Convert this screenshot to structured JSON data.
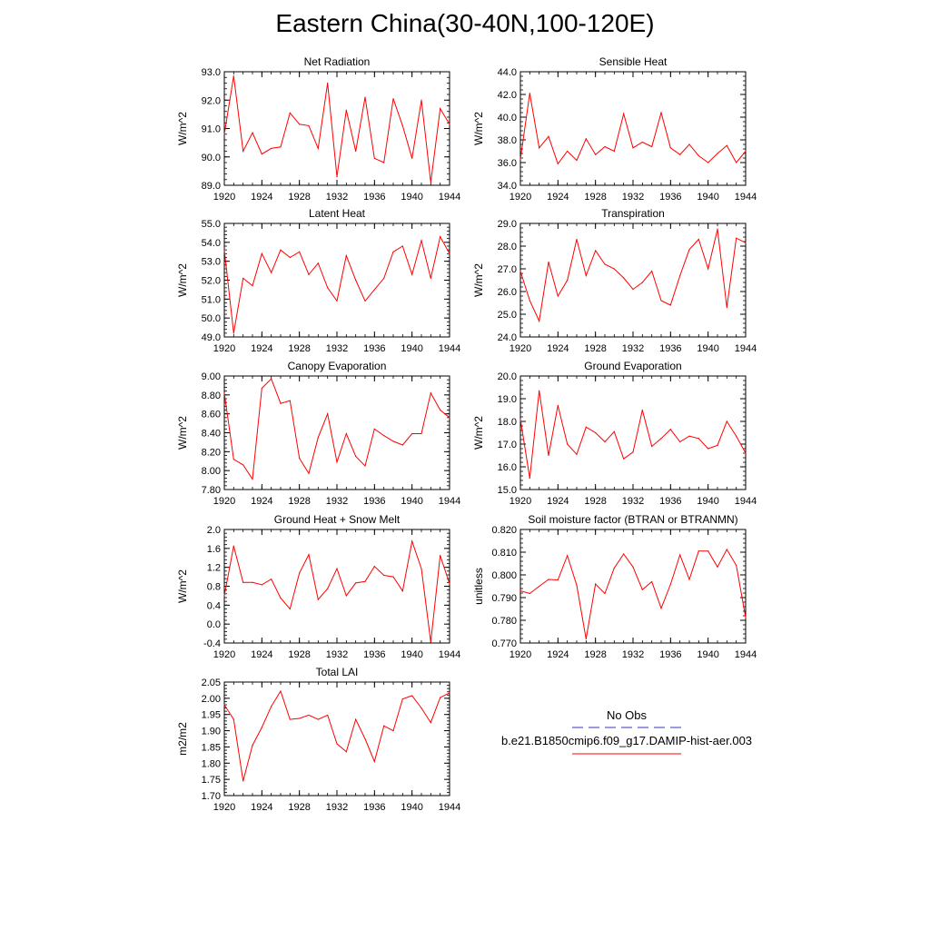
{
  "figure": {
    "title": "Eastern China(30-40N,100-120E)",
    "legend": {
      "obs_label": "No Obs",
      "model_label": "b.e21.B1850cmip6.f09_g17.DAMIP-hist-aer.003",
      "obs_color": "#3333cc",
      "model_color": "#ff0000"
    }
  },
  "chart_data": [
    {
      "type": "line",
      "title": "Net Radiation",
      "xlabel": "",
      "ylabel": "W/m^2",
      "xlim": [
        1920,
        1944
      ],
      "ylim": [
        89.0,
        93.0
      ],
      "xticks": [
        "1920",
        "1924",
        "1928",
        "1932",
        "1936",
        "1940",
        "1944"
      ],
      "yticks": [
        "89.0",
        "90.0",
        "91.0",
        "92.0",
        "93.0"
      ],
      "color": "#ff0000",
      "x": [
        1920,
        1921,
        1922,
        1923,
        1924,
        1925,
        1926,
        1927,
        1928,
        1929,
        1930,
        1931,
        1932,
        1933,
        1934,
        1935,
        1936,
        1937,
        1938,
        1939,
        1940,
        1941,
        1942,
        1943,
        1944
      ],
      "values": [
        90.8,
        92.85,
        90.2,
        90.85,
        90.1,
        90.3,
        90.35,
        91.55,
        91.15,
        91.1,
        90.3,
        92.6,
        89.3,
        91.65,
        90.2,
        92.1,
        89.95,
        89.8,
        92.05,
        91.1,
        89.95,
        92.0,
        89.1,
        91.7,
        91.15
      ]
    },
    {
      "type": "line",
      "title": "Sensible Heat",
      "xlabel": "",
      "ylabel": "W/m^2",
      "xlim": [
        1920,
        1944
      ],
      "ylim": [
        34.0,
        44.0
      ],
      "xticks": [
        "1920",
        "1924",
        "1928",
        "1932",
        "1936",
        "1940",
        "1944"
      ],
      "yticks": [
        "34.0",
        "36.0",
        "38.0",
        "40.0",
        "42.0",
        "44.0"
      ],
      "color": "#ff0000",
      "x": [
        1920,
        1921,
        1922,
        1923,
        1924,
        1925,
        1926,
        1927,
        1928,
        1929,
        1930,
        1931,
        1932,
        1933,
        1934,
        1935,
        1936,
        1937,
        1938,
        1939,
        1940,
        1941,
        1942,
        1943,
        1944
      ],
      "values": [
        36.3,
        42.1,
        37.3,
        38.3,
        35.9,
        37.0,
        36.2,
        38.1,
        36.7,
        37.4,
        37.0,
        40.3,
        37.3,
        37.8,
        37.4,
        40.4,
        37.3,
        36.7,
        37.6,
        36.6,
        36.0,
        36.8,
        37.5,
        36.0,
        37.0
      ]
    },
    {
      "type": "line",
      "title": "Latent Heat",
      "xlabel": "",
      "ylabel": "W/m^2",
      "xlim": [
        1920,
        1944
      ],
      "ylim": [
        49.0,
        55.0
      ],
      "xticks": [
        "1920",
        "1924",
        "1928",
        "1932",
        "1936",
        "1940",
        "1944"
      ],
      "yticks": [
        "49.0",
        "50.0",
        "51.0",
        "52.0",
        "53.0",
        "54.0",
        "55.0"
      ],
      "color": "#ff0000",
      "x": [
        1920,
        1921,
        1922,
        1923,
        1924,
        1925,
        1926,
        1927,
        1928,
        1929,
        1930,
        1931,
        1932,
        1933,
        1934,
        1935,
        1936,
        1937,
        1938,
        1939,
        1940,
        1941,
        1942,
        1943,
        1944
      ],
      "values": [
        53.6,
        49.2,
        52.1,
        51.7,
        53.4,
        52.4,
        53.6,
        53.2,
        53.5,
        52.3,
        52.9,
        51.6,
        50.9,
        53.3,
        52.0,
        50.9,
        51.5,
        52.1,
        53.5,
        53.8,
        52.3,
        54.1,
        52.1,
        54.3,
        53.4
      ]
    },
    {
      "type": "line",
      "title": "Transpiration",
      "xlabel": "",
      "ylabel": "W/m^2",
      "xlim": [
        1920,
        1944
      ],
      "ylim": [
        24.0,
        29.0
      ],
      "xticks": [
        "1920",
        "1924",
        "1928",
        "1932",
        "1936",
        "1940",
        "1944"
      ],
      "yticks": [
        "24.0",
        "25.0",
        "26.0",
        "27.0",
        "28.0",
        "29.0"
      ],
      "color": "#ff0000",
      "x": [
        1920,
        1921,
        1922,
        1923,
        1924,
        1925,
        1926,
        1927,
        1928,
        1929,
        1930,
        1931,
        1932,
        1933,
        1934,
        1935,
        1936,
        1937,
        1938,
        1939,
        1940,
        1941,
        1942,
        1943,
        1944
      ],
      "values": [
        26.9,
        25.6,
        24.7,
        27.3,
        25.8,
        26.5,
        28.3,
        26.7,
        27.8,
        27.2,
        27.0,
        26.6,
        26.1,
        26.4,
        26.9,
        25.6,
        25.4,
        26.7,
        27.85,
        28.3,
        27.0,
        28.75,
        25.3,
        28.35,
        28.15
      ]
    },
    {
      "type": "line",
      "title": "Canopy Evaporation",
      "xlabel": "",
      "ylabel": "W/m^2",
      "xlim": [
        1920,
        1944
      ],
      "ylim": [
        7.8,
        9.0
      ],
      "xticks": [
        "1920",
        "1924",
        "1928",
        "1932",
        "1936",
        "1940",
        "1944"
      ],
      "yticks": [
        "7.80",
        "8.00",
        "8.20",
        "8.40",
        "8.60",
        "8.80",
        "9.00"
      ],
      "color": "#ff0000",
      "x": [
        1920,
        1921,
        1922,
        1923,
        1924,
        1925,
        1926,
        1927,
        1928,
        1929,
        1930,
        1931,
        1932,
        1933,
        1934,
        1935,
        1936,
        1937,
        1938,
        1939,
        1940,
        1941,
        1942,
        1943,
        1944
      ],
      "values": [
        8.82,
        8.12,
        8.06,
        7.91,
        8.87,
        8.97,
        8.71,
        8.74,
        8.13,
        7.97,
        8.35,
        8.6,
        8.09,
        8.39,
        8.15,
        8.05,
        8.44,
        8.37,
        8.31,
        8.27,
        8.39,
        8.39,
        8.82,
        8.64,
        8.56
      ]
    },
    {
      "type": "line",
      "title": "Ground Evaporation",
      "xlabel": "",
      "ylabel": "W/m^2",
      "xlim": [
        1920,
        1944
      ],
      "ylim": [
        15.0,
        20.0
      ],
      "xticks": [
        "1920",
        "1924",
        "1928",
        "1932",
        "1936",
        "1940",
        "1944"
      ],
      "yticks": [
        "15.0",
        "16.0",
        "17.0",
        "18.0",
        "19.0",
        "20.0"
      ],
      "color": "#ff0000",
      "x": [
        1920,
        1921,
        1922,
        1923,
        1924,
        1925,
        1926,
        1927,
        1928,
        1929,
        1930,
        1931,
        1932,
        1933,
        1934,
        1935,
        1936,
        1937,
        1938,
        1939,
        1940,
        1941,
        1942,
        1943,
        1944
      ],
      "values": [
        18.1,
        15.5,
        19.35,
        16.5,
        18.7,
        17.0,
        16.55,
        17.75,
        17.5,
        17.1,
        17.55,
        16.35,
        16.65,
        18.5,
        16.9,
        17.25,
        17.65,
        17.1,
        17.35,
        17.25,
        16.8,
        16.95,
        18.0,
        17.35,
        16.6
      ]
    },
    {
      "type": "line",
      "title": "Ground Heat + Snow Melt",
      "xlabel": "",
      "ylabel": "W/m^2",
      "xlim": [
        1920,
        1944
      ],
      "ylim": [
        -0.4,
        2.0
      ],
      "xticks": [
        "1920",
        "1924",
        "1928",
        "1932",
        "1936",
        "1940",
        "1944"
      ],
      "yticks": [
        "-0.4",
        "0.0",
        "0.4",
        "0.8",
        "1.2",
        "1.6",
        "2.0"
      ],
      "color": "#ff0000",
      "x": [
        1920,
        1921,
        1922,
        1923,
        1924,
        1925,
        1926,
        1927,
        1928,
        1929,
        1930,
        1931,
        1932,
        1933,
        1934,
        1935,
        1936,
        1937,
        1938,
        1939,
        1940,
        1941,
        1942,
        1943,
        1944
      ],
      "values": [
        0.6,
        1.65,
        0.88,
        0.88,
        0.83,
        0.95,
        0.55,
        0.32,
        1.08,
        1.47,
        0.52,
        0.75,
        1.17,
        0.6,
        0.87,
        0.9,
        1.22,
        1.03,
        1.0,
        0.7,
        1.75,
        1.17,
        -0.38,
        1.45,
        0.85
      ]
    },
    {
      "type": "line",
      "title": "Soil moisture factor (BTRAN or BTRANMN)",
      "xlabel": "",
      "ylabel": "unitless",
      "xlim": [
        1920,
        1944
      ],
      "ylim": [
        0.77,
        0.82
      ],
      "xticks": [
        "1920",
        "1924",
        "1928",
        "1932",
        "1936",
        "1940",
        "1944"
      ],
      "yticks": [
        "0.770",
        "0.780",
        "0.790",
        "0.800",
        "0.810",
        "0.820"
      ],
      "color": "#ff0000",
      "x": [
        1920,
        1921,
        1922,
        1923,
        1924,
        1925,
        1926,
        1927,
        1928,
        1929,
        1930,
        1931,
        1932,
        1933,
        1934,
        1935,
        1936,
        1937,
        1938,
        1939,
        1940,
        1941,
        1942,
        1943,
        1944
      ],
      "values": [
        0.793,
        0.7918,
        0.795,
        0.798,
        0.7978,
        0.8085,
        0.7955,
        0.7718,
        0.796,
        0.7918,
        0.803,
        0.8092,
        0.8035,
        0.7935,
        0.797,
        0.7853,
        0.7958,
        0.8088,
        0.798,
        0.8105,
        0.8105,
        0.8035,
        0.8112,
        0.8042,
        0.7812
      ]
    },
    {
      "type": "line",
      "title": "Total LAI",
      "xlabel": "",
      "ylabel": "m2/m2",
      "xlim": [
        1920,
        1944
      ],
      "ylim": [
        1.7,
        2.05
      ],
      "xticks": [
        "1920",
        "1924",
        "1928",
        "1932",
        "1936",
        "1940",
        "1944"
      ],
      "yticks": [
        "1.70",
        "1.75",
        "1.80",
        "1.85",
        "1.90",
        "1.95",
        "2.00",
        "2.05"
      ],
      "color": "#ff0000",
      "x": [
        1920,
        1921,
        1922,
        1923,
        1924,
        1925,
        1926,
        1927,
        1928,
        1929,
        1930,
        1931,
        1932,
        1933,
        1934,
        1935,
        1936,
        1937,
        1938,
        1939,
        1940,
        1941,
        1942,
        1943,
        1944
      ],
      "values": [
        1.98,
        1.935,
        1.745,
        1.855,
        1.91,
        1.975,
        2.022,
        1.935,
        1.938,
        1.948,
        1.935,
        1.948,
        1.86,
        1.835,
        1.935,
        1.875,
        1.805,
        1.915,
        1.9,
        1.998,
        2.008,
        1.97,
        1.925,
        2.002,
        2.017
      ]
    }
  ]
}
